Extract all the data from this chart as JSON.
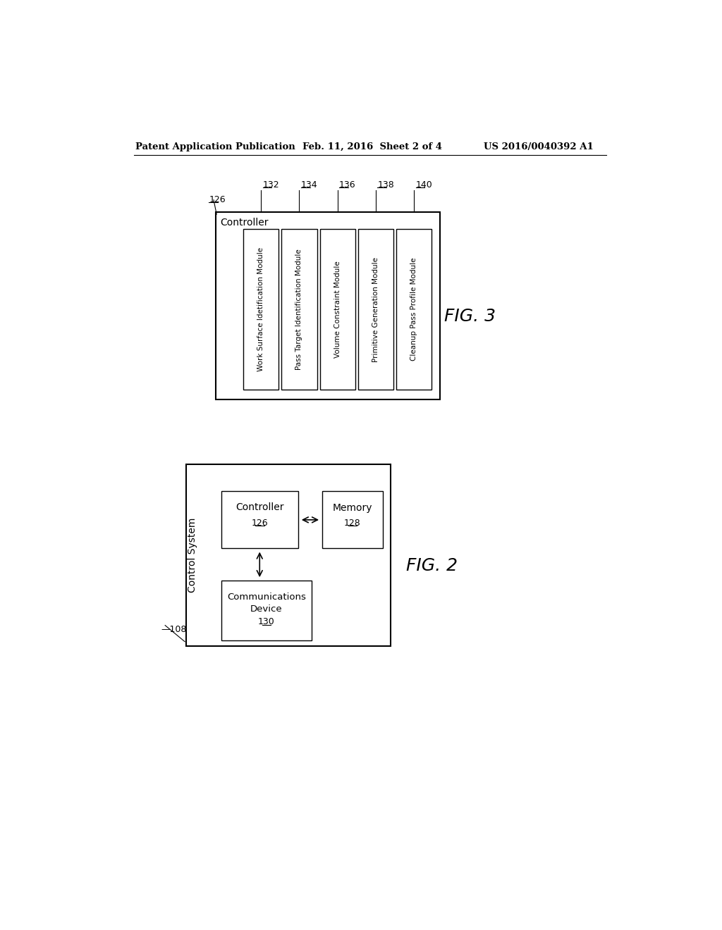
{
  "background_color": "#ffffff",
  "header_left": "Patent Application Publication",
  "header_center": "Feb. 11, 2016  Sheet 2 of 4",
  "header_right": "US 2016/0040392 A1",
  "fig2_label": "FIG. 2",
  "fig3_label": "FIG. 3",
  "fig2": {
    "outer_box_label": "Control System",
    "outer_ref": "108",
    "controller_label": "Controller",
    "controller_ref": "126",
    "memory_label": "Memory",
    "memory_ref": "128",
    "comm_label": "Communications\nDevice",
    "comm_ref": "130"
  },
  "fig3": {
    "outer_box_label": "Controller",
    "outer_ref": "126",
    "modules": [
      {
        "label": "Work Surface Idetification Module",
        "ref": "132"
      },
      {
        "label": "Pass Target Identification Module",
        "ref": "134"
      },
      {
        "label": "Volume Constraint Module",
        "ref": "136"
      },
      {
        "label": "Primitive Generation Module",
        "ref": "138"
      },
      {
        "label": "Cleanup Pass Profile Module",
        "ref": "140"
      }
    ]
  }
}
